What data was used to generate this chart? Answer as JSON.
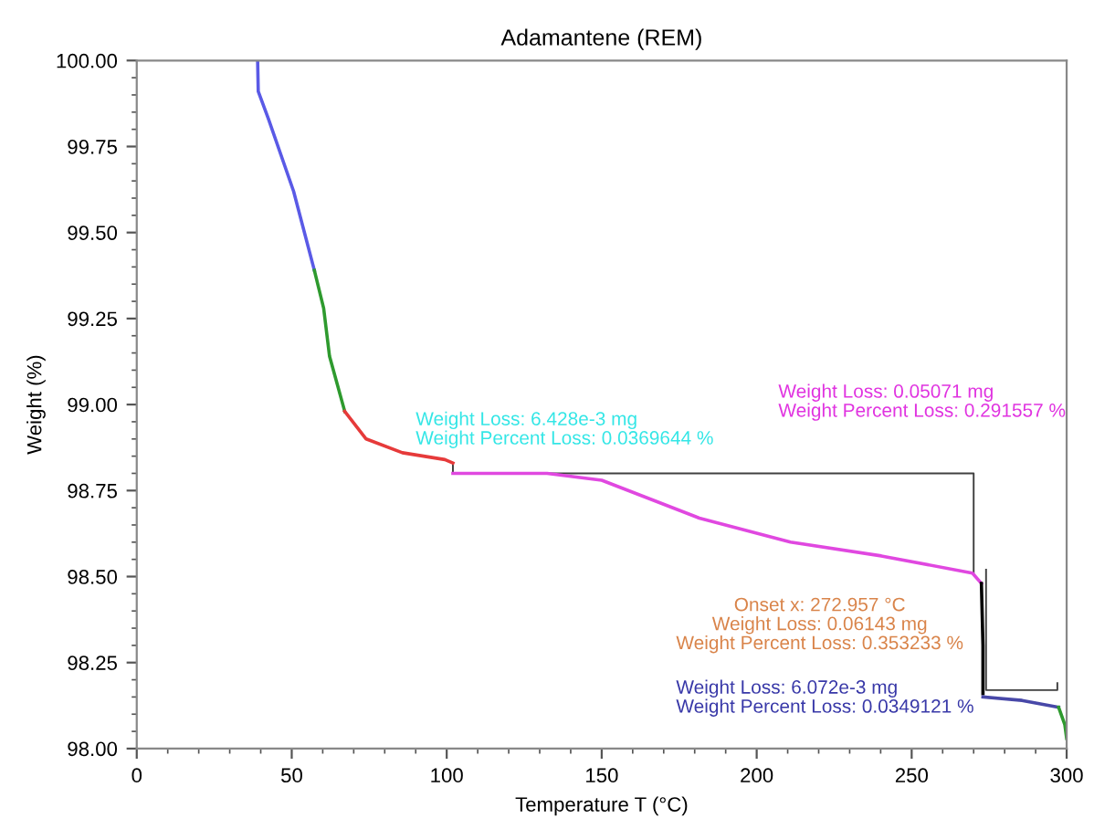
{
  "chart_data": {
    "type": "line",
    "title": "Adamantene (REM)",
    "xlabel": "Temperature T (°C)",
    "ylabel": "Weight (%)",
    "xlim": [
      0,
      300
    ],
    "xticks": [
      0,
      50,
      100,
      150,
      200,
      250,
      300
    ],
    "ylim": [
      98.0,
      100.0
    ],
    "yticks": [
      {
        "value": 98.0,
        "label": "98.00"
      },
      {
        "value": 98.25,
        "label": "98.25"
      },
      {
        "value": 98.5,
        "label": "98.50"
      },
      {
        "value": 98.75,
        "label": "98.75"
      },
      {
        "value": 99.0,
        "label": "99.00"
      },
      {
        "value": 99.25,
        "label": "99.25"
      },
      {
        "value": 99.5,
        "label": "99.50"
      },
      {
        "value": 99.75,
        "label": "99.75"
      },
      {
        "value": 100.0,
        "label": "100.00"
      }
    ],
    "grid": false,
    "legend": false,
    "series": [
      {
        "color": "#5a5ae6",
        "x": [
          39,
          39.2,
          42.5,
          50.6,
          57.3
        ],
        "values": [
          100.0,
          99.91,
          99.83,
          99.62,
          99.39
        ]
      },
      {
        "color": "#2e9a2e",
        "x": [
          57.3,
          60.3,
          62.2,
          67.1
        ],
        "values": [
          99.39,
          99.28,
          99.14,
          98.98
        ]
      },
      {
        "color": "#e63a3a",
        "x": [
          67.1,
          74,
          85.7,
          99.4,
          102
        ],
        "values": [
          98.98,
          98.9,
          98.86,
          98.84,
          98.83
        ]
      },
      {
        "color": "#e048e0",
        "x": [
          102,
          132.4,
          150,
          181.5,
          210.9,
          240.2,
          269.6,
          272.5
        ],
        "values": [
          98.8,
          98.8,
          98.78,
          98.67,
          98.6,
          98.56,
          98.51,
          98.48
        ]
      },
      {
        "color": "#000000",
        "x": [
          272.5,
          273,
          273
        ],
        "values": [
          98.48,
          98.3,
          98.16
        ]
      },
      {
        "color": "#4848a8",
        "x": [
          273,
          285.6,
          297.4
        ],
        "values": [
          98.15,
          98.14,
          98.12
        ]
      },
      {
        "color": "#2e9a2e",
        "x": [
          297.4,
          299.4,
          300
        ],
        "values": [
          98.12,
          98.07,
          98.03
        ]
      },
      {
        "color": "#404040",
        "x": [
          102,
          102,
          270,
          270
        ],
        "values": [
          98.83,
          98.8,
          98.8,
          98.51
        ]
      },
      {
        "color": "#404040",
        "x": [
          274,
          274,
          297,
          297
        ],
        "values": [
          98.52,
          98.17,
          98.17,
          98.19
        ]
      }
    ],
    "annotations": [
      "Weight Loss: 6.428e-3 mg\nWeight Percent Loss: 0.0369644 %",
      "Weight Loss: 0.05071 mg\nWeight Percent Loss: 0.291557 %",
      "Onset x: 272.957 °C\nWeight Loss: 0.06143 mg\nWeight Percent Loss: 0.353233 %",
      "Weight Loss: 6.072e-3 mg\nWeight Percent Loss: 0.0349121 %"
    ]
  }
}
